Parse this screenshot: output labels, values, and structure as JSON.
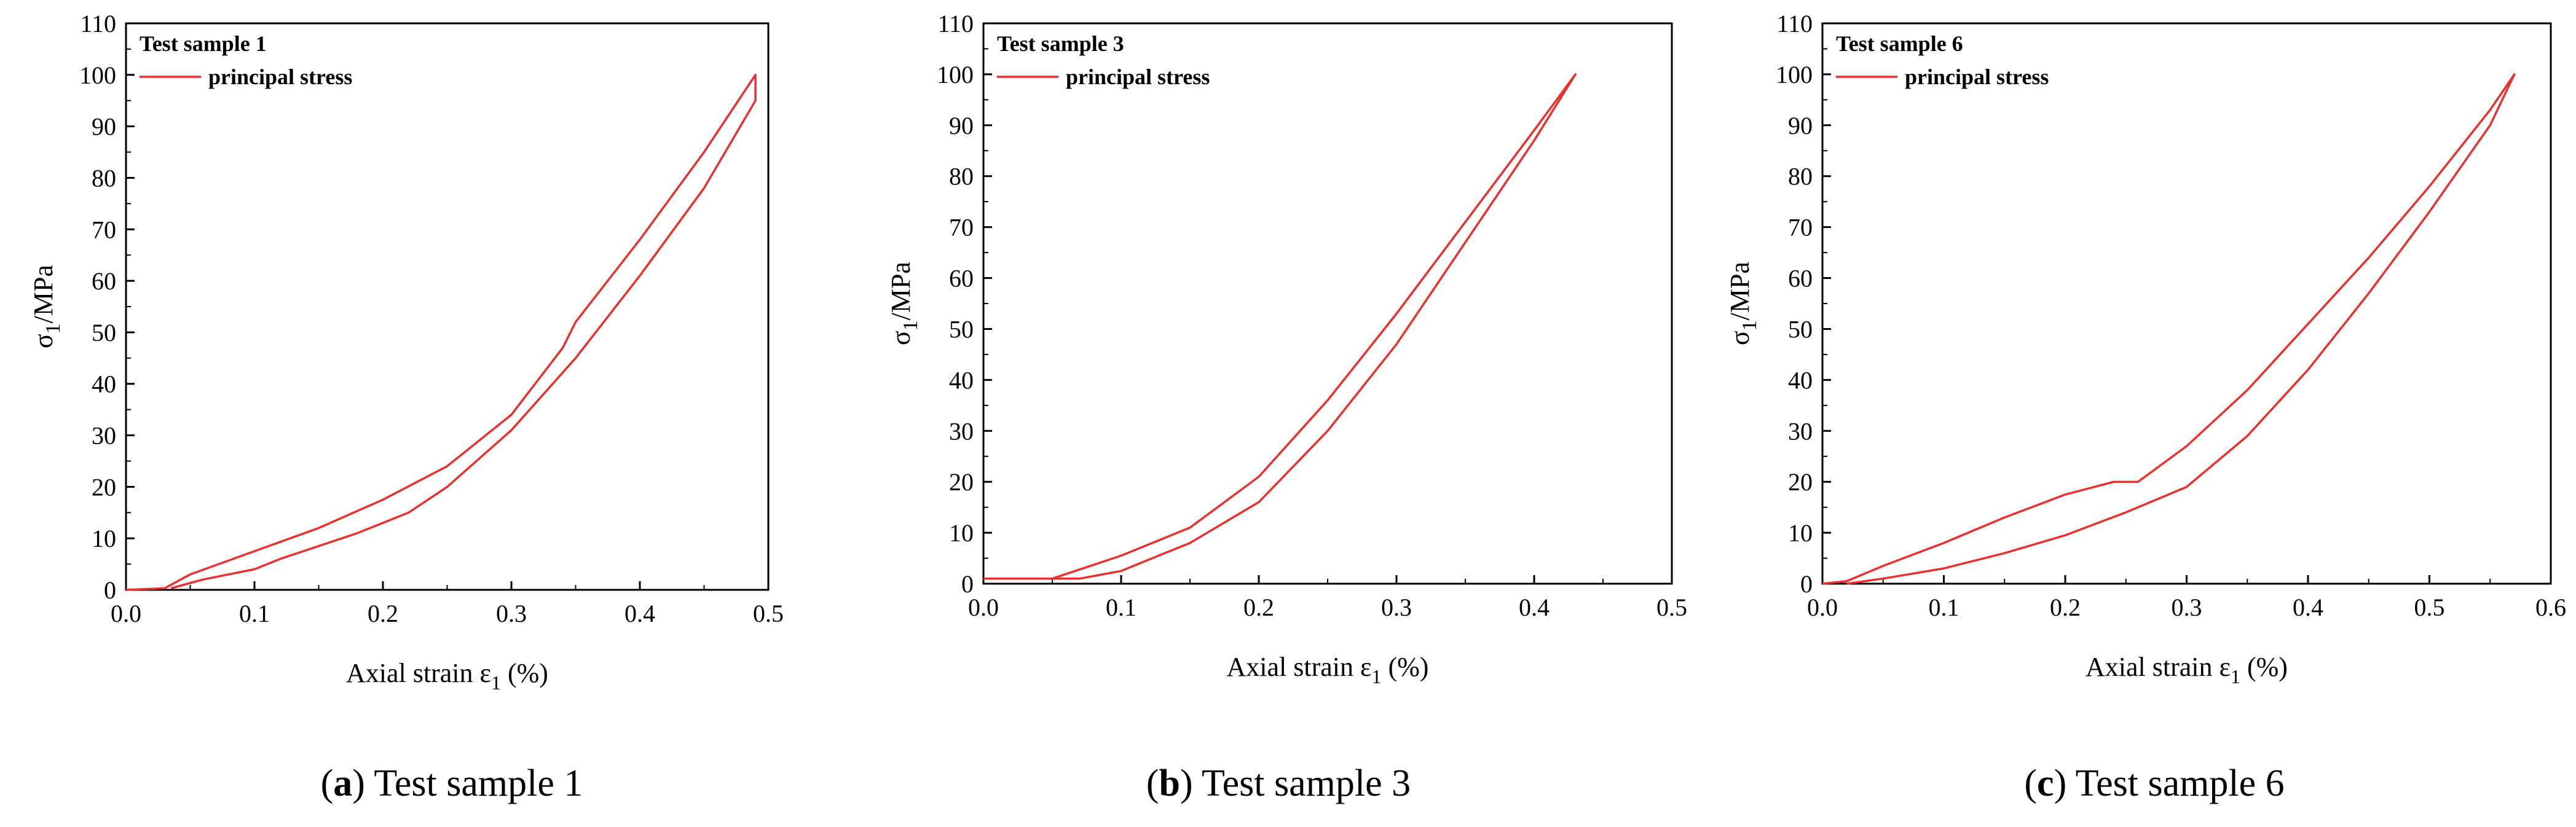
{
  "chart_data": [
    {
      "type": "line",
      "title": "Test sample 1",
      "caption_letter": "a",
      "caption_text": " Test sample 1",
      "xlabel": "Axial strain ε",
      "xlabel_sub": "1",
      "xlabel_unit": " (%)",
      "ylabel": "σ",
      "ylabel_sub": "1",
      "ylabel_unit": "/MPa",
      "xlim": [
        0,
        0.5
      ],
      "ylim": [
        0,
        110
      ],
      "xticks": [
        0,
        0.1,
        0.2,
        0.3,
        0.4,
        0.5
      ],
      "xtick_labels": [
        "0.0",
        "0.1",
        "0.2",
        "0.3",
        "0.4",
        "0.5"
      ],
      "yticks": [
        0,
        10,
        20,
        30,
        40,
        50,
        60,
        70,
        80,
        90,
        100,
        110
      ],
      "ytick_labels": [
        "0",
        "10",
        "20",
        "30",
        "40",
        "50",
        "60",
        "70",
        "80",
        "90",
        "100",
        "110"
      ],
      "grid": false,
      "legend": "top-left",
      "color": "#e8302f",
      "series": [
        {
          "name": "principal stress",
          "x": [
            0.0,
            0.03,
            0.05,
            0.1,
            0.15,
            0.2,
            0.25,
            0.3,
            0.34,
            0.35,
            0.4,
            0.45,
            0.49,
            0.49,
            0.45,
            0.4,
            0.35,
            0.3,
            0.25,
            0.22,
            0.18,
            0.12,
            0.1,
            0.06,
            0.035
          ],
          "y": [
            0.0,
            0.3,
            3.0,
            7.5,
            12.0,
            17.5,
            24.0,
            34.0,
            47.0,
            52.0,
            68.0,
            85.0,
            100.0,
            95.0,
            78.0,
            61.0,
            45.0,
            31.0,
            20.0,
            15.0,
            11.0,
            6.0,
            4.0,
            2.0,
            0.3
          ]
        }
      ]
    },
    {
      "type": "line",
      "title": "Test sample 3",
      "caption_letter": "b",
      "caption_text": " Test sample 3",
      "xlabel": "Axial strain ε",
      "xlabel_sub": "1",
      "xlabel_unit": " (%)",
      "ylabel": "σ",
      "ylabel_sub": "1",
      "ylabel_unit": "/MPa",
      "xlim": [
        0,
        0.5
      ],
      "ylim": [
        0,
        110
      ],
      "xticks": [
        0,
        0.1,
        0.2,
        0.3,
        0.4,
        0.5
      ],
      "xtick_labels": [
        "0.0",
        "0.1",
        "0.2",
        "0.3",
        "0.4",
        "0.5"
      ],
      "yticks": [
        0,
        10,
        20,
        30,
        40,
        50,
        60,
        70,
        80,
        90,
        100,
        110
      ],
      "ytick_labels": [
        "0",
        "10",
        "20",
        "30",
        "40",
        "50",
        "60",
        "70",
        "80",
        "90",
        "100",
        "110"
      ],
      "grid": false,
      "legend": "top-left",
      "color": "#e8302f",
      "series": [
        {
          "name": "principal stress",
          "x": [
            0.0,
            0.05,
            0.1,
            0.15,
            0.2,
            0.25,
            0.3,
            0.35,
            0.4,
            0.43,
            0.4,
            0.35,
            0.3,
            0.25,
            0.2,
            0.15,
            0.1,
            0.07,
            0.05
          ],
          "y": [
            1.0,
            1.0,
            5.5,
            11.0,
            21.0,
            36.0,
            53.0,
            71.0,
            89.0,
            100.0,
            87.0,
            67.0,
            47.0,
            30.0,
            16.0,
            8.0,
            2.5,
            1.0,
            1.0
          ]
        }
      ]
    },
    {
      "type": "line",
      "title": "Test sample 6",
      "caption_letter": "c",
      "caption_text": " Test sample 6",
      "xlabel": "Axial strain ε",
      "xlabel_sub": "1",
      "xlabel_unit": " (%)",
      "ylabel": "σ",
      "ylabel_sub": "1",
      "ylabel_unit": "/MPa",
      "xlim": [
        0,
        0.6
      ],
      "ylim": [
        0,
        110
      ],
      "xticks": [
        0,
        0.1,
        0.2,
        0.3,
        0.4,
        0.5,
        0.6
      ],
      "xtick_labels": [
        "0.0",
        "0.1",
        "0.2",
        "0.3",
        "0.4",
        "0.5",
        "0.6"
      ],
      "yticks": [
        0,
        10,
        20,
        30,
        40,
        50,
        60,
        70,
        80,
        90,
        100,
        110
      ],
      "ytick_labels": [
        "0",
        "10",
        "20",
        "30",
        "40",
        "50",
        "60",
        "70",
        "80",
        "90",
        "100",
        "110"
      ],
      "grid": false,
      "legend": "top-left",
      "color": "#e8302f",
      "series": [
        {
          "name": "principal stress",
          "x": [
            0.0,
            0.02,
            0.05,
            0.1,
            0.15,
            0.2,
            0.24,
            0.26,
            0.3,
            0.35,
            0.4,
            0.45,
            0.5,
            0.55,
            0.57,
            0.55,
            0.5,
            0.45,
            0.4,
            0.35,
            0.3,
            0.25,
            0.2,
            0.15,
            0.1,
            0.05,
            0.02
          ],
          "y": [
            0.0,
            0.5,
            3.5,
            8.0,
            13.0,
            17.5,
            20.0,
            20.0,
            27.0,
            38.0,
            51.0,
            64.0,
            78.0,
            93.0,
            100.0,
            90.0,
            73.0,
            57.0,
            42.0,
            29.0,
            19.0,
            14.0,
            9.5,
            6.0,
            3.0,
            1.0,
            0.0
          ]
        }
      ]
    }
  ]
}
